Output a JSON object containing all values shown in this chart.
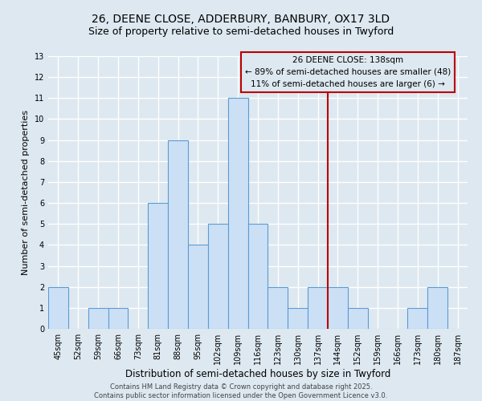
{
  "title": "26, DEENE CLOSE, ADDERBURY, BANBURY, OX17 3LD",
  "subtitle": "Size of property relative to semi-detached houses in Twyford",
  "xlabel": "Distribution of semi-detached houses by size in Twyford",
  "ylabel": "Number of semi-detached properties",
  "categories": [
    "45sqm",
    "52sqm",
    "59sqm",
    "66sqm",
    "73sqm",
    "81sqm",
    "88sqm",
    "95sqm",
    "102sqm",
    "109sqm",
    "116sqm",
    "123sqm",
    "130sqm",
    "137sqm",
    "144sqm",
    "152sqm",
    "159sqm",
    "166sqm",
    "173sqm",
    "180sqm",
    "187sqm"
  ],
  "values": [
    2,
    0,
    1,
    1,
    0,
    6,
    9,
    4,
    5,
    11,
    5,
    2,
    1,
    2,
    2,
    1,
    0,
    0,
    1,
    2,
    0
  ],
  "bar_color": "#cce0f5",
  "bar_edge_color": "#5b9bd5",
  "background_color": "#dde8f0",
  "grid_color": "#ffffff",
  "vline_x": 13.5,
  "vline_color": "#bb0000",
  "annotation_text": "26 DEENE CLOSE: 138sqm\n← 89% of semi-detached houses are smaller (48)\n11% of semi-detached houses are larger (6) →",
  "annotation_box_color": "#bb0000",
  "ylim": [
    0,
    13
  ],
  "yticks": [
    0,
    1,
    2,
    3,
    4,
    5,
    6,
    7,
    8,
    9,
    10,
    11,
    12,
    13
  ],
  "footer": "Contains HM Land Registry data © Crown copyright and database right 2025.\nContains public sector information licensed under the Open Government Licence v3.0.",
  "title_fontsize": 10,
  "subtitle_fontsize": 9,
  "xlabel_fontsize": 8.5,
  "ylabel_fontsize": 8,
  "tick_fontsize": 7,
  "annotation_fontsize": 7.5,
  "footer_fontsize": 6
}
